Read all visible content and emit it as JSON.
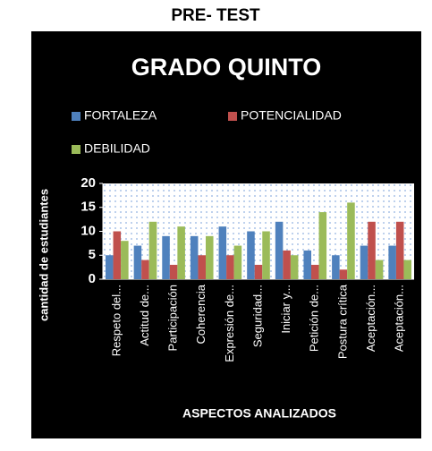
{
  "page_title": "PRE- TEST",
  "chart_data": {
    "type": "bar",
    "title": "GRADO QUINTO",
    "x_label": "ASPECTOS ANALIZADOS",
    "y_label": "cantidad de estudiantes",
    "categories": [
      "Respeto del...",
      "Actitud de...",
      "Participación",
      "Coherencia",
      "Expresión de...",
      "Seguridad...",
      "Iniciar y...",
      "Petición de...",
      "Postura crítica",
      "Aceptación...",
      "Aceptación..."
    ],
    "series": [
      {
        "name": "FORTALEZA",
        "color": "#4f81bd",
        "values": [
          5,
          7,
          9,
          9,
          11,
          10,
          12,
          6,
          5,
          7,
          7
        ]
      },
      {
        "name": "POTENCIALIDAD",
        "color": "#c0504d",
        "values": [
          10,
          4,
          3,
          5,
          5,
          3,
          6,
          3,
          2,
          12,
          12
        ]
      },
      {
        "name": "DEBILIDAD",
        "color": "#9bbb59",
        "values": [
          8,
          12,
          11,
          9,
          7,
          10,
          5,
          14,
          16,
          4,
          4
        ]
      }
    ],
    "ylim": [
      0,
      20
    ],
    "yticks": [
      0,
      5,
      10,
      15,
      20
    ],
    "grid": false
  }
}
